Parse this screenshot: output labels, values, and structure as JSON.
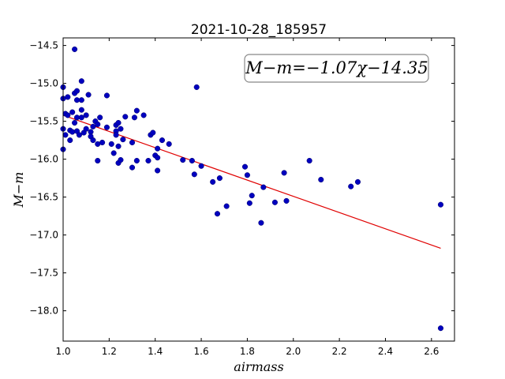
{
  "chart_data": {
    "type": "scatter",
    "title": "2021-10-28_185957",
    "xlabel": "airmass",
    "ylabel": "M−m",
    "annotation": "M−m=−1.07χ−14.35",
    "xlim": [
      1.0,
      2.7
    ],
    "ylim": [
      -18.4,
      -14.4
    ],
    "y_inverted": true,
    "xticks": [
      1.0,
      1.2,
      1.4,
      1.6,
      1.8,
      2.0,
      2.2,
      2.4,
      2.6
    ],
    "xtick_labels": [
      "1.0",
      "1.2",
      "1.4",
      "1.6",
      "1.8",
      "2.0",
      "2.2",
      "2.4",
      "2.6"
    ],
    "yticks": [
      -14.5,
      -15.0,
      -15.5,
      -16.0,
      -16.5,
      -17.0,
      -17.5,
      -18.0
    ],
    "ytick_labels": [
      "−14.5",
      "−15.0",
      "−15.5",
      "−16.0",
      "−16.5",
      "−17.0",
      "−17.5",
      "−18.0"
    ],
    "grid": false,
    "point_color": "#0000bf",
    "fit_color": "#e00000",
    "points": [
      [
        1.0,
        -15.05
      ],
      [
        1.0,
        -15.2
      ],
      [
        1.0,
        -15.87
      ],
      [
        1.0,
        -15.6
      ],
      [
        1.01,
        -15.4
      ],
      [
        1.01,
        -15.68
      ],
      [
        1.02,
        -15.18
      ],
      [
        1.02,
        -15.42
      ],
      [
        1.03,
        -15.62
      ],
      [
        1.03,
        -15.75
      ],
      [
        1.04,
        -15.38
      ],
      [
        1.04,
        -15.64
      ],
      [
        1.05,
        -14.55
      ],
      [
        1.05,
        -15.13
      ],
      [
        1.05,
        -15.52
      ],
      [
        1.06,
        -15.1
      ],
      [
        1.06,
        -15.22
      ],
      [
        1.06,
        -15.45
      ],
      [
        1.06,
        -15.63
      ],
      [
        1.07,
        -15.68
      ],
      [
        1.08,
        -15.35
      ],
      [
        1.08,
        -15.45
      ],
      [
        1.08,
        -15.22
      ],
      [
        1.08,
        -14.97
      ],
      [
        1.09,
        -15.65
      ],
      [
        1.1,
        -15.42
      ],
      [
        1.1,
        -15.6
      ],
      [
        1.11,
        -15.15
      ],
      [
        1.12,
        -15.64
      ],
      [
        1.12,
        -15.7
      ],
      [
        1.13,
        -15.57
      ],
      [
        1.13,
        -15.75
      ],
      [
        1.14,
        -15.5
      ],
      [
        1.15,
        -15.54
      ],
      [
        1.15,
        -15.8
      ],
      [
        1.15,
        -16.02
      ],
      [
        1.16,
        -15.45
      ],
      [
        1.17,
        -15.78
      ],
      [
        1.19,
        -15.58
      ],
      [
        1.19,
        -15.16
      ],
      [
        1.21,
        -15.8
      ],
      [
        1.22,
        -15.92
      ],
      [
        1.23,
        -15.63
      ],
      [
        1.23,
        -15.68
      ],
      [
        1.23,
        -15.55
      ],
      [
        1.24,
        -15.52
      ],
      [
        1.24,
        -15.83
      ],
      [
        1.24,
        -16.05
      ],
      [
        1.25,
        -16.01
      ],
      [
        1.25,
        -15.6
      ],
      [
        1.26,
        -15.74
      ],
      [
        1.27,
        -15.44
      ],
      [
        1.3,
        -16.11
      ],
      [
        1.3,
        -15.78
      ],
      [
        1.31,
        -15.45
      ],
      [
        1.32,
        -15.36
      ],
      [
        1.32,
        -16.02
      ],
      [
        1.35,
        -15.42
      ],
      [
        1.37,
        -16.02
      ],
      [
        1.38,
        -15.68
      ],
      [
        1.39,
        -15.65
      ],
      [
        1.4,
        -15.95
      ],
      [
        1.41,
        -15.86
      ],
      [
        1.41,
        -15.98
      ],
      [
        1.41,
        -16.15
      ],
      [
        1.43,
        -15.75
      ],
      [
        1.46,
        -15.8
      ],
      [
        1.52,
        -16.01
      ],
      [
        1.56,
        -16.02
      ],
      [
        1.57,
        -16.2
      ],
      [
        1.58,
        -15.05
      ],
      [
        1.6,
        -16.09
      ],
      [
        1.65,
        -16.3
      ],
      [
        1.67,
        -16.72
      ],
      [
        1.68,
        -16.25
      ],
      [
        1.71,
        -16.62
      ],
      [
        1.79,
        -16.1
      ],
      [
        1.8,
        -16.21
      ],
      [
        1.81,
        -16.58
      ],
      [
        1.82,
        -16.48
      ],
      [
        1.86,
        -16.84
      ],
      [
        1.87,
        -16.37
      ],
      [
        1.92,
        -16.57
      ],
      [
        1.96,
        -16.18
      ],
      [
        1.97,
        -16.55
      ],
      [
        2.07,
        -16.02
      ],
      [
        2.12,
        -16.27
      ],
      [
        2.25,
        -16.36
      ],
      [
        2.28,
        -16.3
      ],
      [
        2.64,
        -16.6
      ],
      [
        2.64,
        -18.23
      ]
    ],
    "fit_line": {
      "slope": -1.07,
      "intercept": -14.35,
      "x_range": [
        1.0,
        2.64
      ]
    }
  }
}
